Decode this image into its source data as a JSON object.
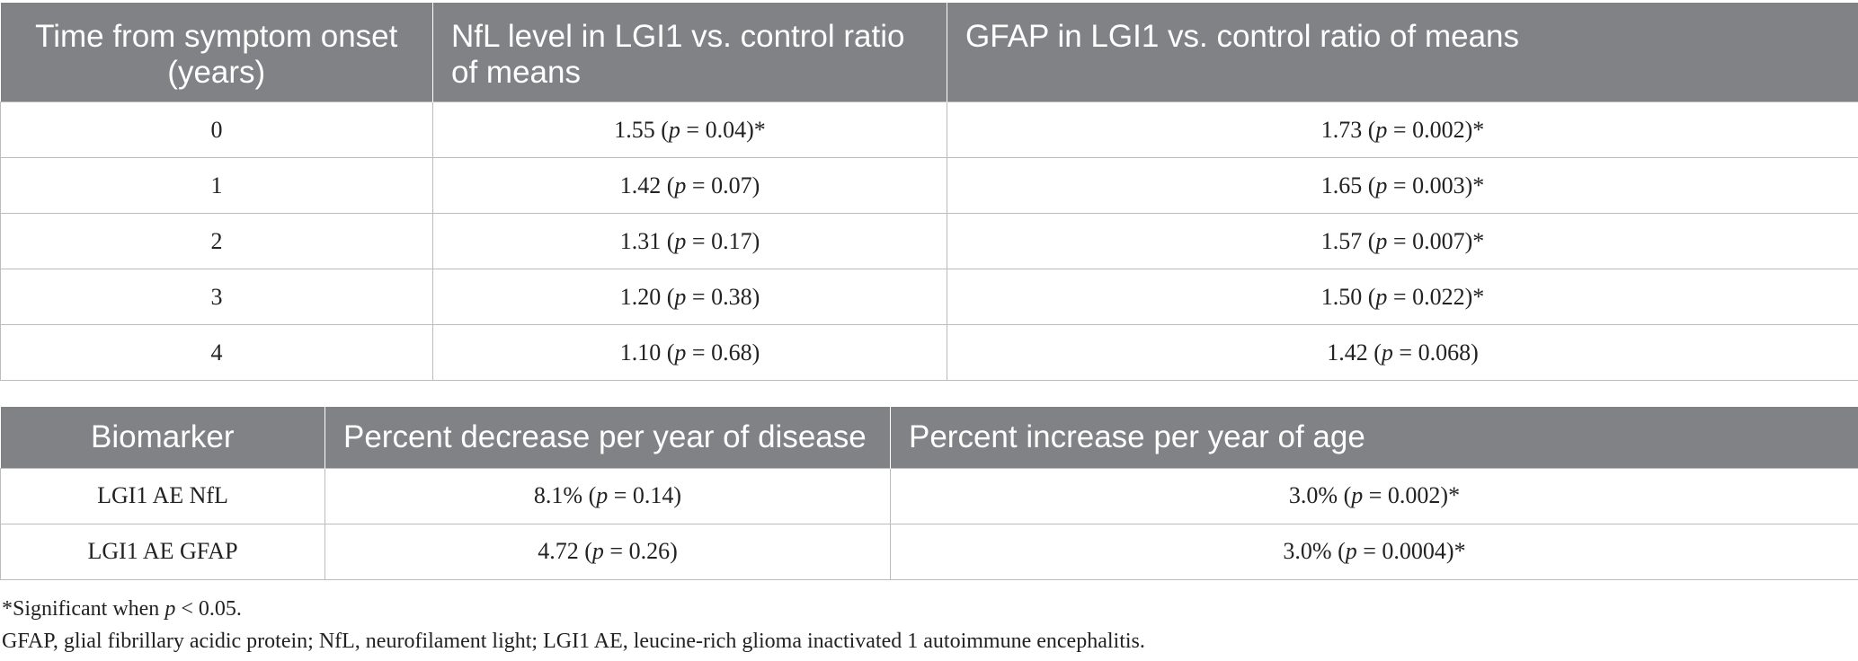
{
  "table1": {
    "headers": [
      "Time from symptom onset (years)",
      "NfL level in LGI1 vs. control ratio of means",
      "GFAP in LGI1 vs. control ratio of means"
    ],
    "rows": [
      {
        "time": "0",
        "nfl_value": "1.55",
        "nfl_p": "0.04)*",
        "gfap_value": "1.73",
        "gfap_p": "0.002)*"
      },
      {
        "time": "1",
        "nfl_value": "1.42",
        "nfl_p": "0.07)",
        "gfap_value": "1.65",
        "gfap_p": "0.003)*"
      },
      {
        "time": "2",
        "nfl_value": "1.31",
        "nfl_p": "0.17)",
        "gfap_value": "1.57",
        "gfap_p": "0.007)*"
      },
      {
        "time": "3",
        "nfl_value": "1.20",
        "nfl_p": "0.38)",
        "gfap_value": "1.50",
        "gfap_p": "0.022)*"
      },
      {
        "time": "4",
        "nfl_value": "1.10",
        "nfl_p": "0.68)",
        "gfap_value": "1.42",
        "gfap_p": "0.068)"
      }
    ]
  },
  "table2": {
    "headers": [
      "Biomarker",
      "Percent decrease per year of disease",
      "Percent increase per year of age"
    ],
    "rows": [
      {
        "biomarker": "LGI1 AE NfL",
        "decrease_value": "8.1%",
        "decrease_p": "0.14)",
        "increase_value": "3.0%",
        "increase_p": "0.002)*"
      },
      {
        "biomarker": "LGI1 AE GFAP",
        "decrease_value": "4.72",
        "decrease_p": "0.26)",
        "increase_value": "3.0%",
        "increase_p": "0.0004)*"
      }
    ]
  },
  "footnotes": {
    "significance_prefix": "*Significant when",
    "p_symbol": "p",
    "significance_suffix": "< 0.05.",
    "abbreviations": "GFAP, glial fibrillary acidic protein; NfL, neurofilament light; LGI1 AE, leucine-rich glioma inactivated 1 autoimmune encephalitis."
  }
}
